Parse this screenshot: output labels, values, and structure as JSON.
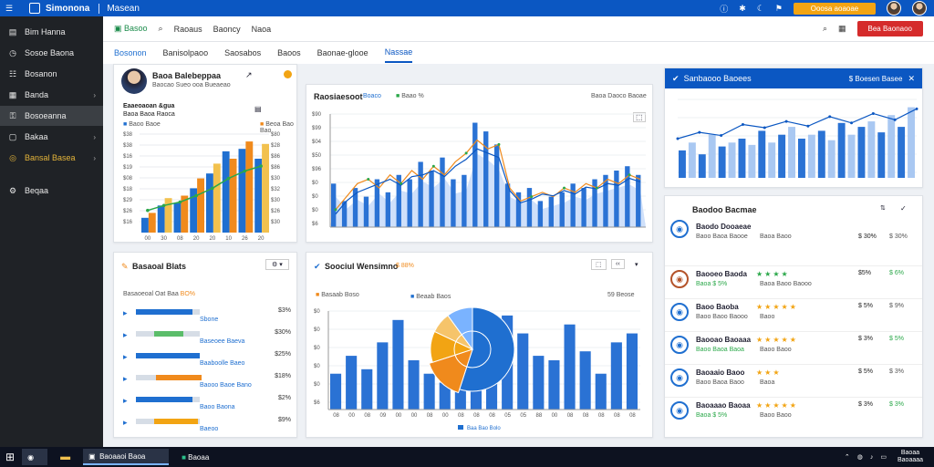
{
  "topbar": {
    "brand": "Simonona",
    "product": "Masean",
    "cta": "Ooosa aoaoae",
    "icons": [
      "info-icon",
      "settings-icon",
      "moon-icon",
      "bell-icon"
    ]
  },
  "sidebar": {
    "items": [
      {
        "label": "Bim Hanna",
        "icon": "document-icon",
        "chev": false
      },
      {
        "label": "Sosoe Baona",
        "icon": "clock-icon",
        "chev": false
      },
      {
        "label": "Bosanon",
        "icon": "list-icon",
        "chev": false
      },
      {
        "label": "Banda",
        "icon": "calendar-icon",
        "chev": true
      },
      {
        "label": "Bosoeanna",
        "icon": "key-icon",
        "chev": false,
        "active": true
      },
      {
        "label": "Bakaa",
        "icon": "box-icon",
        "chev": true
      },
      {
        "label": "Bansal Basea",
        "icon": "globe-icon",
        "chev": true,
        "gold": true
      },
      {
        "label": "Beqaa",
        "icon": "gear-icon",
        "chev": false
      }
    ]
  },
  "toolbar": {
    "items": [
      "Basoo",
      "Raoaus",
      "Baoncy",
      "Naoa"
    ],
    "action": "Bea Baonaoo"
  },
  "tabs": [
    "Bosonon",
    "Banisolpaoo",
    "Saosabos",
    "Baoos",
    "Baonae-glooe",
    "Nassae"
  ],
  "card1": {
    "name": "Baoa Balebeppaa",
    "sub": "Baocao Sueo ooa Bueaeao",
    "line1": "Eaaeoaoan &gua",
    "line2": "Baoa Baoa Raoca",
    "legend": [
      "Baoo Baoe",
      "Beoa Bao Bao"
    ],
    "yleft": [
      "$38",
      "$38",
      "$16",
      "$19",
      "$08",
      "$18",
      "$29",
      "$26",
      "$16"
    ],
    "yright": [
      "$80",
      "$28",
      "$86",
      "$86",
      "$30",
      "$32",
      "$30",
      "$26",
      "$30"
    ],
    "xlabels": [
      "00",
      "30",
      "08",
      "20",
      "20",
      "10",
      "26",
      "20"
    ]
  },
  "card2": {
    "title": "Raosiaesoot",
    "tag1": "Boaco",
    "tag2": "Baao %",
    "sub": "Baoa Daoco Baoae",
    "yaxis": [
      "$90",
      "$99",
      "$04",
      "$50",
      "$96",
      "$0",
      "$0",
      "$0",
      "$6"
    ]
  },
  "card3": {
    "title": "Basaoal Blats",
    "sub": "Basaoeoal Oat Baa",
    "pct": "BO%",
    "rows": [
      {
        "label": "Sbone",
        "value": "$3%"
      },
      {
        "label": "Baseoee Baeva",
        "value": "$30%"
      },
      {
        "label": "Baaboolle Baeo",
        "value": "$25%"
      },
      {
        "label": "Baooo Baoe Bano",
        "value": "$18%"
      },
      {
        "label": "Baoo Baona",
        "value": "$2%"
      },
      {
        "label": "Baeoo",
        "value": "$9%"
      }
    ]
  },
  "card4": {
    "title": "Soociul Wensimno",
    "pct": "$ 88%",
    "sub1": "Basaab Boso",
    "sub2": "Beaab Baos",
    "count": "59 Beose",
    "legend": "Baa Bao Bolo",
    "yaxis": [
      "$0",
      "$0",
      "$0",
      "$0",
      "$0",
      "$6"
    ],
    "xlabels": [
      "08",
      "00",
      "08",
      "09",
      "00",
      "00",
      "08",
      "00",
      "08",
      "08",
      "08",
      "05",
      "05",
      "88",
      "00",
      "08",
      "08",
      "08",
      "08",
      "08"
    ]
  },
  "card5": {
    "title": "Sanbaooo Baoees",
    "tag": "$ Boesen Basee"
  },
  "card6": {
    "title": "Baodoo Bacmae",
    "items": [
      {
        "name": "Baodo Dooaeae",
        "sub": "Baoo Baoa Baooe",
        "meta": "Baoa Baoo",
        "v1": "$ 30%",
        "v2": "$ 30%",
        "stars": 0,
        "starcolor": "green"
      },
      {
        "name": "Baooeo Baoda",
        "sub": "Baoa $ 5%",
        "meta": "Baoa Baoo Baooo",
        "v1": "$5%",
        "v2": "$ 6%",
        "stars": 4,
        "starcolor": "green"
      },
      {
        "name": "Baoo Baoba",
        "sub": "Baoo Baoo Baooo",
        "meta": "Baoo",
        "v1": "$ 5%",
        "v2": "$ 9%",
        "stars": 5,
        "starcolor": "gold"
      },
      {
        "name": "Baooao Baoaaa",
        "sub": "Baoo Baoa Baoa",
        "meta": "Baoo Baoo",
        "v1": "$ 3%",
        "v2": "$ 5%",
        "stars": 5,
        "starcolor": "gold"
      },
      {
        "name": "Baoaaio Baoo",
        "sub": "Baoo Baoa Baoo",
        "meta": "Baoa",
        "v1": "$ 5%",
        "v2": "$ 3%",
        "stars": 3,
        "starcolor": "gold"
      },
      {
        "name": "Baoaaao Baoaa",
        "sub": "Baoa $ 5%",
        "meta": "Baoo Baoo",
        "v1": "$ 3%",
        "v2": "$ 3%",
        "stars": 5,
        "starcolor": "gold"
      }
    ]
  },
  "taskbar": {
    "apps": [
      "Baoaaoi Baoa",
      "Baoaa"
    ],
    "clock": "Baoaa Baoaaaa"
  },
  "chart_data": [
    {
      "type": "bar",
      "title": "Baoa Balebeppaa",
      "series": [
        {
          "name": "Baoo Baoe",
          "values": [
            30,
            55,
            60,
            90,
            120,
            165,
            170,
            150
          ]
        },
        {
          "name": "Beoa Bao Bao",
          "values": [
            40,
            70,
            75,
            110,
            140,
            150,
            185,
            180
          ]
        }
      ],
      "line": [
        45,
        55,
        62,
        75,
        90,
        110,
        125,
        135
      ]
    },
    {
      "type": "area",
      "title": "Raosiaesoot",
      "series": [
        {
          "name": "bars",
          "values": [
            50,
            30,
            45,
            35,
            55,
            40,
            60,
            55,
            75,
            65,
            80,
            55,
            60,
            120,
            110,
            95,
            50,
            40,
            45,
            30,
            35,
            40,
            50,
            45,
            55,
            60,
            65,
            70,
            60
          ]
        },
        {
          "name": "line-orange",
          "values": [
            20,
            35,
            50,
            55,
            45,
            60,
            50,
            65,
            55,
            70,
            60,
            75,
            85,
            100,
            90,
            95,
            45,
            30,
            35,
            40,
            35,
            45,
            40,
            50,
            45,
            55,
            50,
            60,
            55
          ]
        },
        {
          "name": "line-blue",
          "values": [
            15,
            30,
            40,
            45,
            50,
            55,
            48,
            58,
            60,
            65,
            58,
            70,
            78,
            90,
            85,
            80,
            42,
            28,
            32,
            38,
            36,
            42,
            38,
            46,
            44,
            50,
            48,
            56,
            52
          ]
        }
      ]
    },
    {
      "type": "bar",
      "title": "Soociul Wensimno",
      "values": [
        40,
        60,
        45,
        75,
        100,
        55,
        40,
        30,
        55,
        75,
        90,
        105,
        85,
        60,
        55,
        95,
        65,
        40,
        75,
        85
      ],
      "pie": [
        55,
        15,
        12,
        8,
        10
      ]
    },
    {
      "type": "bar",
      "title": "Sanbaooo Baoees",
      "values": [
        35,
        45,
        30,
        55,
        40,
        45,
        50,
        42,
        60,
        45,
        55,
        65,
        50,
        55,
        60,
        48,
        70,
        55,
        65,
        72,
        58,
        80,
        65,
        90
      ],
      "line": [
        50,
        58,
        54,
        68,
        64,
        72,
        66,
        78,
        70,
        82,
        74,
        88
      ]
    }
  ]
}
